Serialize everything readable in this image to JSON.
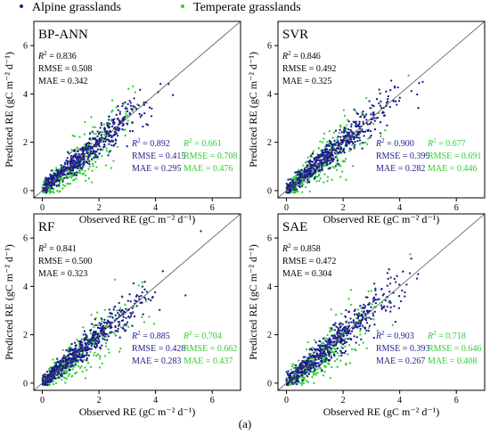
{
  "legend": {
    "alpine": {
      "label": "Alpine grasslands",
      "color": "#1c1c8c"
    },
    "temperate": {
      "label": "Temperate grasslands",
      "color": "#33cc33"
    }
  },
  "caption": "(a)",
  "colors": {
    "alpine": "#1c1c8c",
    "temperate": "#33cc33",
    "oneToOneLine": "#555555"
  },
  "chart_data": [
    {
      "type": "scatter",
      "title": "BP-ANN",
      "xlabel": "Observed RE (gC m⁻² d⁻¹)",
      "ylabel": "Predicted RE (gC m⁻² d⁻¹)",
      "xlim": [
        -0.3,
        7
      ],
      "ylim": [
        -0.3,
        7
      ],
      "xticks": [
        0,
        2,
        4,
        6
      ],
      "yticks": [
        0,
        2,
        4,
        6
      ],
      "reference_line": "1:1",
      "overall": {
        "r2": "= 0.836",
        "rmse": "RMSE = 0.508",
        "mae": "MAE = 0.342"
      },
      "alpine": {
        "r2": "= 0.892",
        "rmse": "RMSE = 0.415",
        "mae": "MAE = 0.295"
      },
      "temperate": {
        "r2": "= 0.661",
        "rmse": "RMSE = 0.708",
        "mae": "MAE = 0.476"
      }
    },
    {
      "type": "scatter",
      "title": "SVR",
      "xlabel": "Observed RE (gC m⁻² d⁻¹)",
      "ylabel": "Predicted RE (gC m⁻² d⁻¹)",
      "xlim": [
        -0.3,
        7
      ],
      "ylim": [
        -0.3,
        7
      ],
      "xticks": [
        0,
        2,
        4,
        6
      ],
      "yticks": [
        0,
        2,
        4,
        6
      ],
      "reference_line": "1:1",
      "overall": {
        "r2": "= 0.846",
        "rmse": "RMSE = 0.492",
        "mae": "MAE = 0.325"
      },
      "alpine": {
        "r2": "= 0.900",
        "rmse": "RMSE = 0.399",
        "mae": "MAE = 0.282"
      },
      "temperate": {
        "r2": "= 0.677",
        "rmse": "RMSE = 0.691",
        "mae": "MAE = 0.446"
      }
    },
    {
      "type": "scatter",
      "title": "RF",
      "xlabel": "Observed RE (gC m⁻² d⁻¹)",
      "ylabel": "Predicted RE (gC m⁻² d⁻¹)",
      "xlim": [
        -0.3,
        7
      ],
      "ylim": [
        -0.3,
        7
      ],
      "xticks": [
        0,
        2,
        4,
        6
      ],
      "yticks": [
        0,
        2,
        4,
        6
      ],
      "reference_line": "1:1",
      "overall": {
        "r2": "= 0.841",
        "rmse": "RMSE = 0.500",
        "mae": "MAE = 0.323"
      },
      "alpine": {
        "r2": "= 0.885",
        "rmse": "RMSE = 0.428",
        "mae": "MAE = 0.283"
      },
      "temperate": {
        "r2": "= 0.704",
        "rmse": "RMSE = 0.662",
        "mae": "MAE = 0.437"
      }
    },
    {
      "type": "scatter",
      "title": "SAE",
      "xlabel": "Observed RE (gC m⁻² d⁻¹)",
      "ylabel": "Predicted RE (gC m⁻² d⁻¹)",
      "xlim": [
        -0.3,
        7
      ],
      "ylim": [
        -0.3,
        7
      ],
      "xticks": [
        0,
        2,
        4,
        6
      ],
      "yticks": [
        0,
        2,
        4,
        6
      ],
      "reference_line": "1:1",
      "overall": {
        "r2": "= 0.858",
        "rmse": "RMSE = 0.472",
        "mae": "MAE = 0.304"
      },
      "alpine": {
        "r2": "= 0.903",
        "rmse": "RMSE = 0.393",
        "mae": "MAE = 0.267"
      },
      "temperate": {
        "r2": "= 0.718",
        "rmse": "RMSE = 0.646",
        "mae": "MAE = 0.408"
      }
    }
  ]
}
